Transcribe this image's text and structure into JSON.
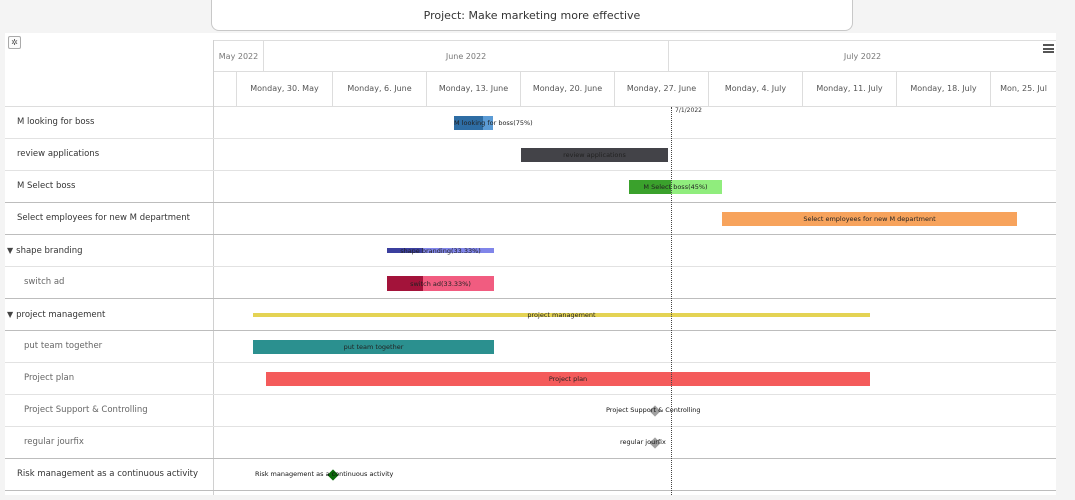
{
  "project_title": "Project: Make marketing more effective",
  "timeline": {
    "months": [
      "May 2022",
      "June 2022",
      "July 2022"
    ],
    "weeks": [
      "Monday, 30. May",
      "Monday, 6. June",
      "Monday, 13. June",
      "Monday, 20. June",
      "Monday, 27. June",
      "Monday, 4. July",
      "Monday, 11. July",
      "Monday, 18. July",
      "Mon, 25. Jul"
    ],
    "today_label": "7/1/2022"
  },
  "icons": {
    "settings": "gear-icon",
    "menu": "hamburger-menu-icon",
    "expand": "triangle-down-icon"
  },
  "tasks": [
    {
      "label": "M looking for boss",
      "bar_label": "M looking for boss(75%)",
      "color": "#5b9bd5",
      "progress_color": "#2e6da4",
      "progress": 0.75
    },
    {
      "label": "review applications",
      "bar_label": "review applications",
      "color": "#434348"
    },
    {
      "label": "M Select boss",
      "bar_label": "M Select boss(45%)",
      "color": "#90ed7d",
      "progress_color": "#3aa12c",
      "progress": 0.45
    },
    {
      "label": "Select employees for new M department",
      "bar_label": "Select employees for new M department",
      "color": "#f7a35c"
    },
    {
      "label": "shape branding",
      "bar_label": "shape branding(33.33%)",
      "color": "#8085e9",
      "progress_color": "#3b3f9e",
      "progress": 0.3333
    },
    {
      "label": "switch ad",
      "bar_label": "switch ad(33.33%)",
      "color": "#f15c80",
      "progress_color": "#a3133a",
      "progress": 0.3333
    },
    {
      "label": "project management",
      "bar_label": "project management",
      "color": "#e4d354"
    },
    {
      "label": "put team together",
      "bar_label": "put team together",
      "color": "#2b908f"
    },
    {
      "label": "Project plan",
      "bar_label": "Project plan",
      "color": "#f45b5b"
    },
    {
      "label": "Project Support & Controlling",
      "bar_label": "Project Support & Controlling",
      "color": "#a0a0a0"
    },
    {
      "label": "regular jourfix",
      "bar_label": "regular jourfix",
      "color": "#a0a0a0"
    },
    {
      "label": "Risk management as a continuous activity",
      "bar_label": "Risk management as a continuous activity",
      "color": "#0b6b0b"
    }
  ]
}
